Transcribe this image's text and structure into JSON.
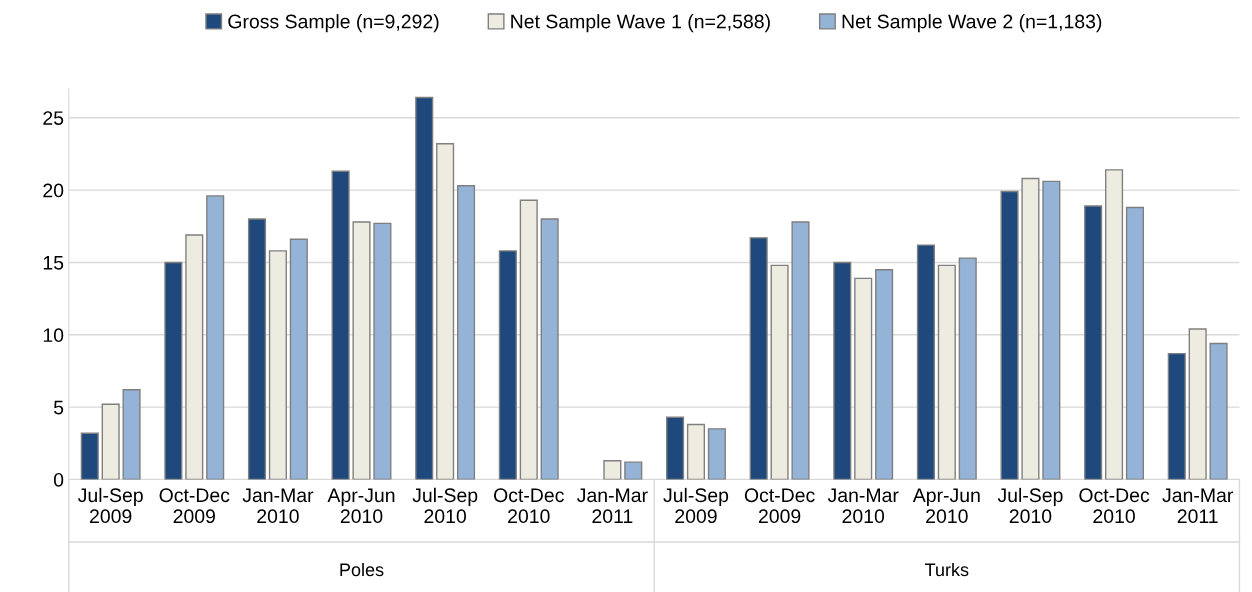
{
  "chart_data": {
    "type": "bar",
    "categories": [
      "Jul-Sep\n2009",
      "Oct-Dec\n2009",
      "Jan-Mar\n2010",
      "Apr-Jun\n2010",
      "Jul-Sep\n2010",
      "Oct-Dec\n2010",
      "Jan-Mar\n2011",
      "Jul-Sep\n2009",
      "Oct-Dec\n2009",
      "Jan-Mar\n2010",
      "Apr-Jun\n2010",
      "Jul-Sep\n2010",
      "Oct-Dec\n2010",
      "Jan-Mar\n2011"
    ],
    "series": [
      {
        "name": "Gross Sample (n=9,292)",
        "color": "#1f497d",
        "values": [
          3.2,
          15.0,
          18.0,
          21.3,
          26.4,
          15.8,
          null,
          4.3,
          16.7,
          15.0,
          16.2,
          19.9,
          18.9,
          8.7
        ]
      },
      {
        "name": "Net Sample Wave 1 (n=2,588)",
        "color": "#eeece1",
        "values": [
          5.2,
          16.9,
          15.8,
          17.8,
          23.2,
          19.3,
          1.3,
          3.8,
          14.8,
          13.9,
          14.8,
          20.8,
          21.4,
          10.4
        ]
      },
      {
        "name": "Net Sample Wave 2 (n=1,183)",
        "color": "#95b3d7",
        "values": [
          6.2,
          19.6,
          16.6,
          17.7,
          20.3,
          18.0,
          1.2,
          3.5,
          17.8,
          14.5,
          15.3,
          20.6,
          18.8,
          9.4
        ]
      }
    ],
    "annotations": [
      "Poles",
      "Turks"
    ],
    "ylim": [
      0,
      27
    ],
    "yticks": [
      0,
      5,
      10,
      15,
      20,
      25
    ],
    "grid": "y",
    "legend": "top"
  }
}
